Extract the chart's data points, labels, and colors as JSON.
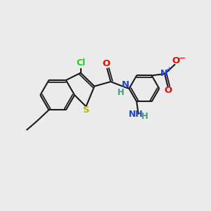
{
  "background_color": "#ebebeb",
  "bond_color": "#1a1a1a",
  "bond_width": 1.5,
  "dbo": 0.09,
  "atoms": {
    "S": {
      "color": "#b8b800",
      "fontsize": 9.5
    },
    "Cl": {
      "color": "#22cc22",
      "fontsize": 9
    },
    "O": {
      "color": "#dd1100",
      "fontsize": 9.5
    },
    "N": {
      "color": "#2244cc",
      "fontsize": 9.5
    },
    "NH": {
      "color": "#2244cc",
      "fontsize": 9
    },
    "H": {
      "color": "#449988",
      "fontsize": 8.5
    }
  },
  "figsize": [
    3.0,
    3.0
  ],
  "dpi": 100
}
